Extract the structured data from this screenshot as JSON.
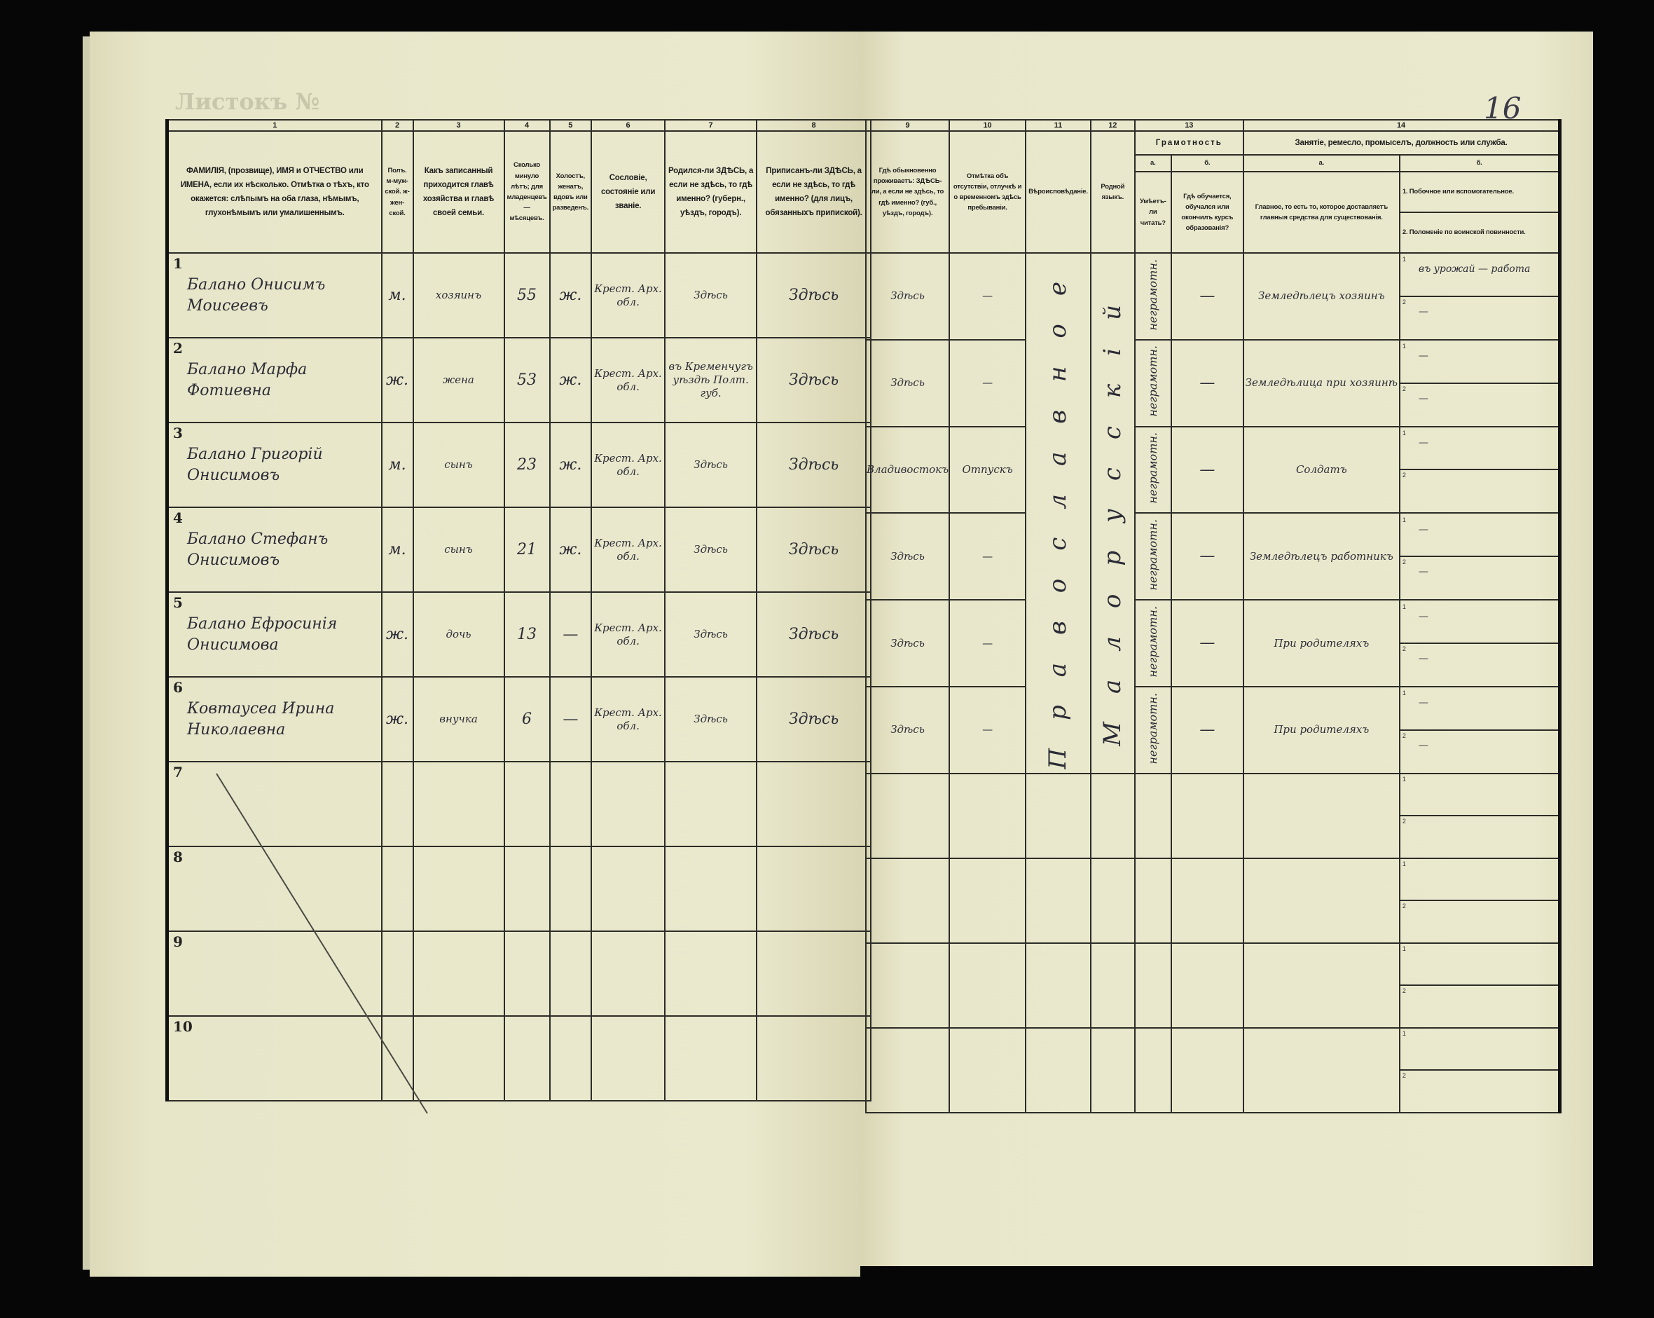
{
  "page": {
    "sheet_label": "Листокъ №",
    "page_number": "16"
  },
  "columns": {
    "c1": {
      "num": "1",
      "text": "ФАМИЛІЯ, (прозвище), ИМЯ и ОТЧЕСТВО или ИМЕНА, если их нѣсколько. Отмѣтка о тѣхъ, кто окажется: слѣпымъ на оба глаза, нѣмымъ, глухонѣмымъ или умалишеннымъ."
    },
    "c2": {
      "num": "2",
      "text": "Полъ. м-муж-ской. ж-жен-ской."
    },
    "c3": {
      "num": "3",
      "text": "Какъ записанный приходится главѣ хозяйства и главѣ своей семьи."
    },
    "c4": {
      "num": "4",
      "text": "Сколько минуло лѣтъ; для младенцевъ — мѣсяцевъ."
    },
    "c5": {
      "num": "5",
      "text": "Холостъ, женатъ, вдовъ или разведенъ."
    },
    "c6": {
      "num": "6",
      "text": "Сословіе, состояніе или званіе."
    },
    "c7": {
      "num": "7",
      "text": "Родился-ли ЗДѢСЬ, а если не здѣсь, то гдѣ именно? (губерн., уѣздъ, городъ)."
    },
    "c8": {
      "num": "8",
      "text": "Приписанъ-ли ЗДѢСЬ, а если не здѣсь, то гдѣ именно? (для лицъ, обязанныхъ припиской)."
    },
    "c9": {
      "num": "9",
      "text": "Гдѣ обыкновенно проживаетъ: ЗДѢСЬ-ли, а если не здѣсь, то гдѣ именно? (губ., уѣздъ, городъ)."
    },
    "c10": {
      "num": "10",
      "text": "Отмѣтка объ отсутствіи, отлучкѣ и о временномъ здѣсь пребываніи."
    },
    "c11": {
      "num": "11",
      "text": "Вѣроисповѣданіе."
    },
    "c12": {
      "num": "12",
      "text": "Родной языкъ."
    },
    "c13": {
      "num": "13",
      "title": "Грамотность",
      "a": "а.",
      "a_text": "Умѣетъ-ли читать?",
      "b": "б.",
      "b_text": "Гдѣ обучается, обучался или окончилъ курсъ образованія?"
    },
    "c14": {
      "num": "14",
      "title": "Занятіе, ремесло, промыселъ, должность или служба.",
      "a": "а.",
      "a_text": "Главное, то есть то, которое доставляетъ главныя средства для существованія.",
      "b": "б.",
      "b1_text": "1. Побочное или вспомогательное.",
      "b2_text": "2. Положеніе по воинской повинности."
    }
  },
  "vertical": {
    "religion": "Православное",
    "language": "Малорусскій",
    "literacy": "неграмотн."
  },
  "rows": [
    {
      "n": "1",
      "name": "Балано Онисимъ Моисеевъ",
      "sex": "м.",
      "relation": "хозяинъ",
      "age": "55",
      "marital": "ж.",
      "estate": "Крест. Арх. обл.",
      "born": "Здѣсь",
      "registered": "Здѣсь",
      "resides": "Здѣсь",
      "absence": "—",
      "school": "—",
      "occupation": "Земледѣлецъ хозяинъ",
      "side": "въ урожай — работа",
      "military": "—"
    },
    {
      "n": "2",
      "name": "Балано Марфа Фотиевна",
      "sex": "ж.",
      "relation": "жена",
      "age": "53",
      "marital": "ж.",
      "estate": "Крест. Арх. обл.",
      "born": "въ Кременчугъ уѣздѣ Полт. губ.",
      "registered": "Здѣсь",
      "resides": "Здѣсь",
      "absence": "—",
      "school": "—",
      "occupation": "Земледѣлица при хозяинѣ",
      "side": "—",
      "military": "—"
    },
    {
      "n": "3",
      "name": "Балано Григорій Онисимовъ",
      "sex": "м.",
      "relation": "сынъ",
      "age": "23",
      "marital": "ж.",
      "estate": "Крест. Арх. обл.",
      "born": "Здѣсь",
      "registered": "Здѣсь",
      "resides": "Владивостокъ",
      "absence": "Отпускъ",
      "school": "—",
      "occupation": "Солдатъ",
      "side": "—",
      "military": ""
    },
    {
      "n": "4",
      "name": "Балано Стефанъ Онисимовъ",
      "sex": "м.",
      "relation": "сынъ",
      "age": "21",
      "marital": "ж.",
      "estate": "Крест. Арх. обл.",
      "born": "Здѣсь",
      "registered": "Здѣсь",
      "resides": "Здѣсь",
      "absence": "—",
      "school": "—",
      "occupation": "Земледѣлецъ работникъ",
      "side": "—",
      "military": "—"
    },
    {
      "n": "5",
      "name": "Балано Ефросинія Онисимова",
      "sex": "ж.",
      "relation": "дочь",
      "age": "13",
      "marital": "—",
      "estate": "Крест. Арх. обл.",
      "born": "Здѣсь",
      "registered": "Здѣсь",
      "resides": "Здѣсь",
      "absence": "—",
      "school": "—",
      "occupation": "При родителяхъ",
      "side": "—",
      "military": "—"
    },
    {
      "n": "6",
      "name": "Ковтаусеа Ирина Николаевна",
      "sex": "ж.",
      "relation": "внучка",
      "age": "6",
      "marital": "—",
      "estate": "Крест. Арх. обл.",
      "born": "Здѣсь",
      "registered": "Здѣсь",
      "resides": "Здѣсь",
      "absence": "—",
      "school": "—",
      "occupation": "При родителяхъ",
      "side": "—",
      "military": "—"
    },
    {
      "n": "7"
    },
    {
      "n": "8"
    },
    {
      "n": "9"
    },
    {
      "n": "10"
    }
  ],
  "sub_labels": {
    "one": "1",
    "two": "2"
  }
}
